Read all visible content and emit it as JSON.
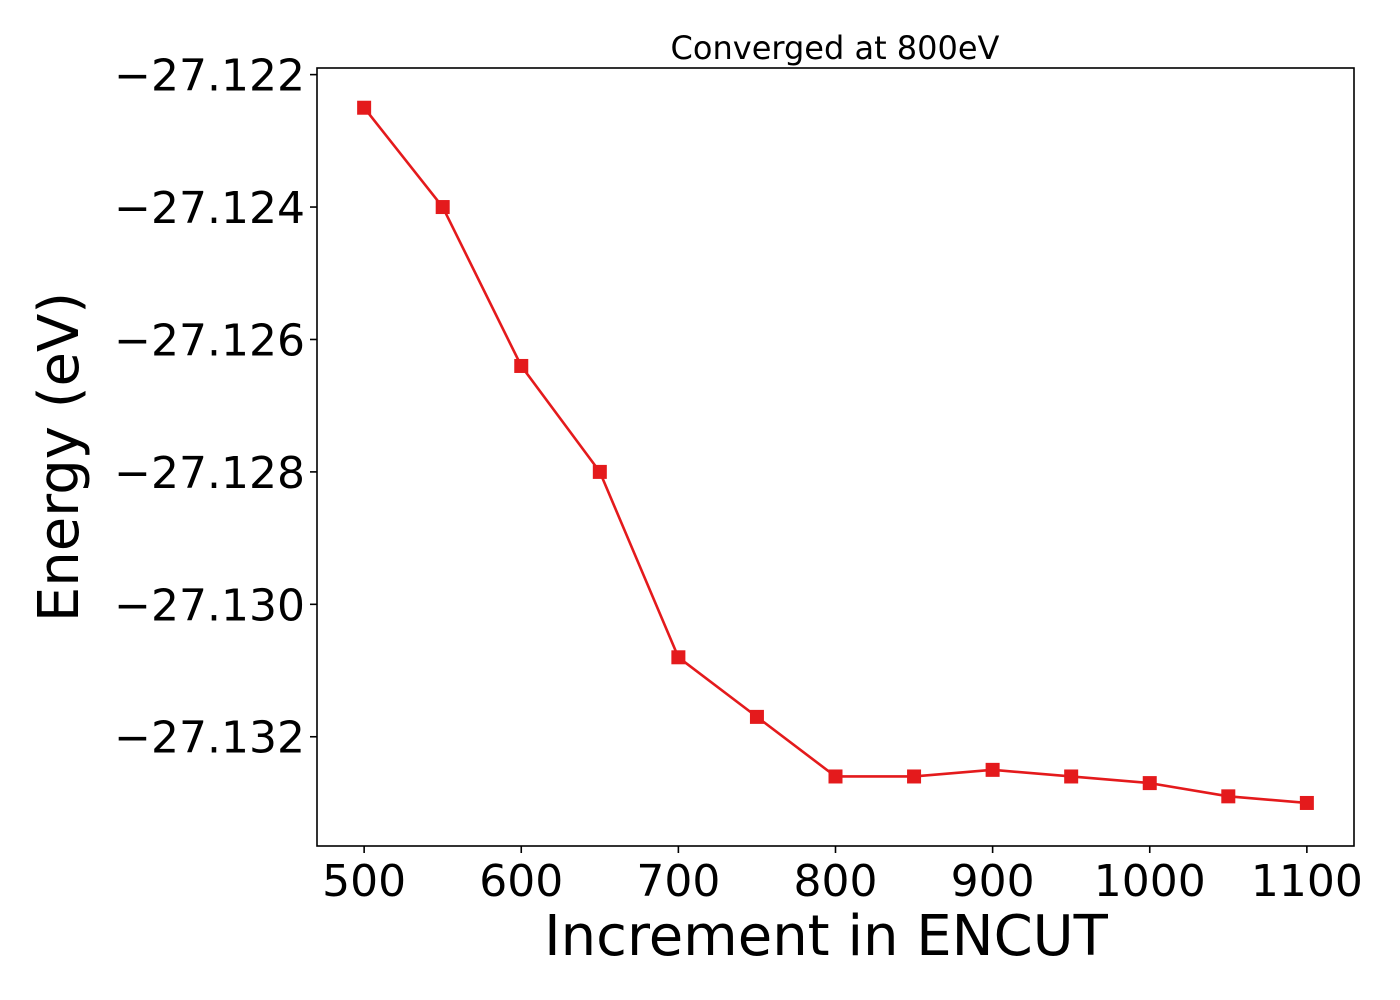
{
  "chart_data": {
    "type": "line",
    "title": "Converged at 800eV",
    "xlabel": "Increment in ENCUT",
    "ylabel": "Energy (eV)",
    "x": [
      500,
      550,
      600,
      650,
      700,
      750,
      800,
      850,
      900,
      950,
      1000,
      1050,
      1100
    ],
    "series": [
      {
        "color": "#e41a1c",
        "marker": "square",
        "values": [
          -27.1225,
          -27.124,
          -27.1264,
          -27.128,
          -27.1308,
          -27.1317,
          -27.1326,
          -27.1326,
          -27.1325,
          -27.1326,
          -27.1327,
          -27.1329,
          -27.133
        ]
      }
    ],
    "xlim": [
      470,
      1130
    ],
    "ylim": [
      -27.13365,
      -27.1219
    ],
    "x_ticks": [
      500,
      600,
      700,
      800,
      900,
      1000,
      1100
    ],
    "x_tick_labels": [
      "500",
      "600",
      "700",
      "800",
      "900",
      "1000",
      "1100"
    ],
    "y_ticks": [
      -27.122,
      -27.124,
      -27.126,
      -27.128,
      -27.13,
      -27.132
    ],
    "y_tick_labels": [
      "−27.122",
      "−27.124",
      "−27.126",
      "−27.128",
      "−27.130",
      "−27.132"
    ],
    "grid": false,
    "legend": false
  }
}
